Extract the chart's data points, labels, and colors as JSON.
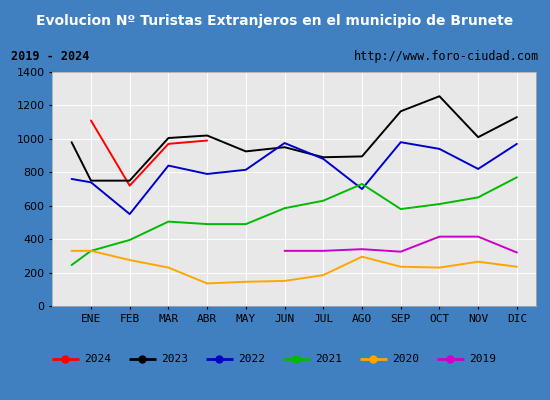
{
  "title": "Evolucion Nº Turistas Extranjeros en el municipio de Brunete",
  "subtitle_left": "2019 - 2024",
  "subtitle_right": "http://www.foro-ciudad.com",
  "x_labels": [
    "ENE",
    "FEB",
    "MAR",
    "ABR",
    "MAY",
    "JUN",
    "JUL",
    "AGO",
    "SEP",
    "OCT",
    "NOV",
    "DIC"
  ],
  "ylim": [
    0,
    1400
  ],
  "yticks": [
    0,
    200,
    400,
    600,
    800,
    1000,
    1200,
    1400
  ],
  "series": {
    "2024": {
      "color": "#ff0000",
      "x": [
        0,
        1,
        2,
        3
      ],
      "data": [
        1110,
        720,
        970,
        990
      ]
    },
    "2023": {
      "color": "#000000",
      "x": [
        -0.5,
        0,
        1,
        2,
        3,
        4,
        5,
        6,
        7,
        8,
        9,
        10,
        11
      ],
      "data": [
        980,
        750,
        750,
        1005,
        1020,
        925,
        950,
        890,
        895,
        1165,
        1255,
        1010,
        1130
      ]
    },
    "2022": {
      "color": "#0000cc",
      "x": [
        -0.5,
        0,
        1,
        2,
        3,
        4,
        5,
        6,
        7,
        8,
        9,
        10,
        11
      ],
      "data": [
        760,
        740,
        550,
        840,
        790,
        815,
        975,
        880,
        700,
        980,
        940,
        820,
        970
      ]
    },
    "2021": {
      "color": "#00bb00",
      "x": [
        -0.5,
        0,
        1,
        2,
        3,
        4,
        5,
        6,
        7,
        8,
        9,
        10,
        11
      ],
      "data": [
        245,
        330,
        395,
        505,
        490,
        490,
        585,
        630,
        730,
        580,
        610,
        650,
        770
      ]
    },
    "2020": {
      "color": "#ffa500",
      "x": [
        -0.5,
        0,
        1,
        2,
        3,
        4,
        5,
        6,
        7,
        8,
        9,
        10,
        11
      ],
      "data": [
        330,
        330,
        275,
        230,
        135,
        145,
        150,
        185,
        295,
        235,
        230,
        265,
        235
      ]
    },
    "2019": {
      "color": "#cc00cc",
      "x": [
        5,
        6,
        7,
        8,
        9,
        10,
        11
      ],
      "data": [
        330,
        330,
        340,
        325,
        415,
        415,
        320
      ]
    }
  },
  "title_bg_color": "#4080c0",
  "title_text_color": "#ffffff",
  "plot_bg_color": "#e8e8e8",
  "grid_color": "#ffffff",
  "subtitle_bg_color": "#d8d8d8",
  "legend_years": [
    "2024",
    "2023",
    "2022",
    "2021",
    "2020",
    "2019"
  ],
  "legend_colors": [
    "#ff0000",
    "#000000",
    "#0000cc",
    "#00bb00",
    "#ffa500",
    "#cc00cc"
  ],
  "legend_fontsize": 8,
  "title_fontsize": 10,
  "axis_fontsize": 8
}
